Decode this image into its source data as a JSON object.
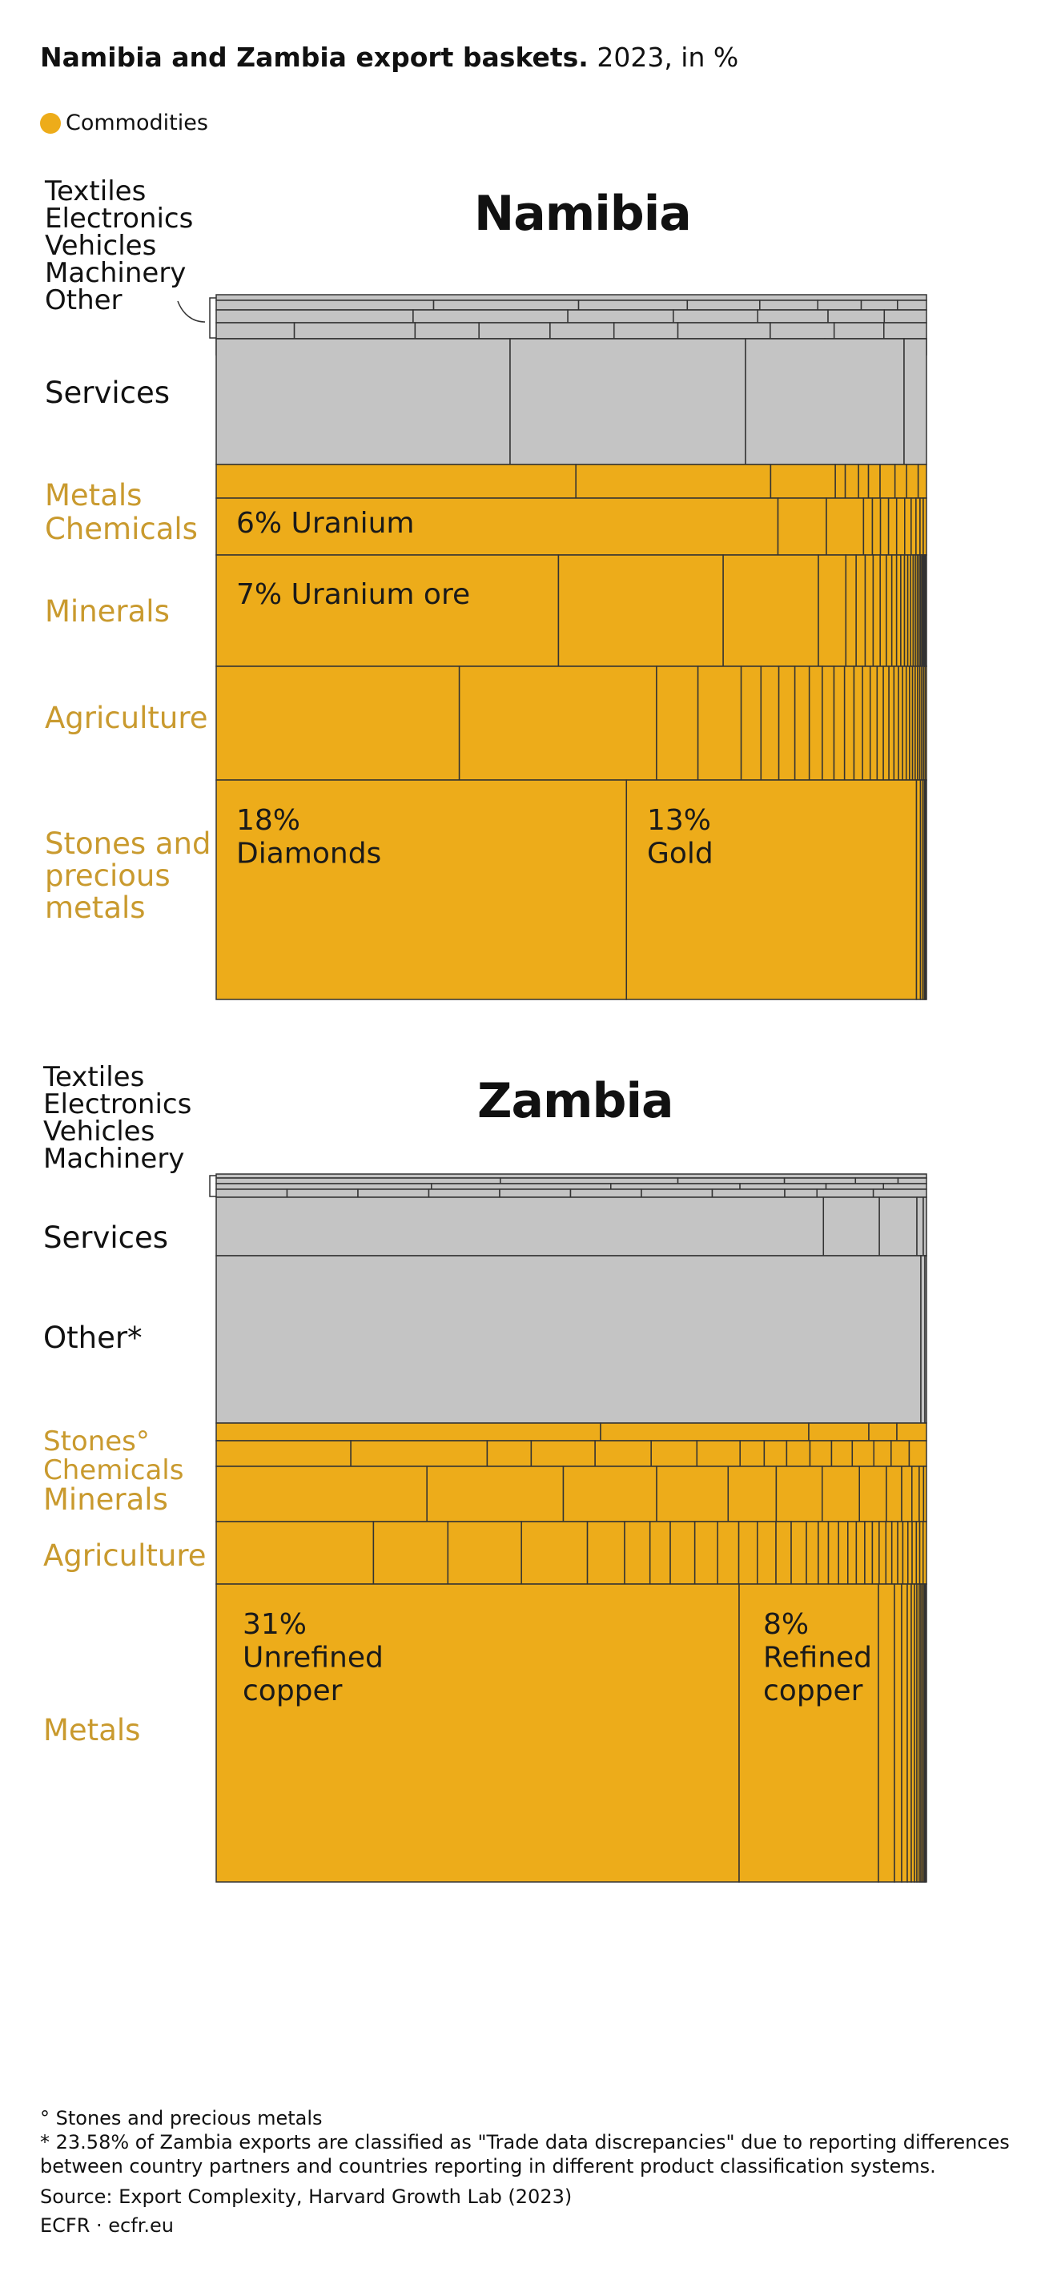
{
  "header": {
    "title_bold": "Namibia and Zambia export baskets.",
    "title_rest": " 2023, in %"
  },
  "legend": {
    "label": "Commodities",
    "color": "#EDAC1A"
  },
  "colors": {
    "commodity": "#EDAC1A",
    "non_commodity": "#C4C4C4",
    "commodity_label": "#C99A2E",
    "border": "#333333"
  },
  "chart_data": [
    {
      "type": "treemap",
      "title": "Namibia",
      "category_labels": [
        {
          "label": "Textiles\nElectronics\nVehicles\nMachinery\nOther",
          "commodity": false
        },
        {
          "label": "Services",
          "commodity": false
        },
        {
          "label": "Metals\nChemicals",
          "commodity": true
        },
        {
          "label": "Minerals",
          "commodity": true
        },
        {
          "label": "Agriculture",
          "commodity": true
        },
        {
          "label": "Stones and\nprecious\nmetals",
          "commodity": true
        }
      ],
      "annotations": [
        {
          "text": "6% Uranium",
          "value": 6
        },
        {
          "text": "7% Uranium ore",
          "value": 7
        },
        {
          "text": "18%\nDiamonds",
          "value": 18
        },
        {
          "text": "13%\nGold",
          "value": 13
        }
      ]
    },
    {
      "type": "treemap",
      "title": "Zambia",
      "category_labels": [
        {
          "label": "Textiles\nElectronics\nVehicles\nMachinery",
          "commodity": false
        },
        {
          "label": "Services",
          "commodity": false
        },
        {
          "label": "Other*",
          "commodity": false
        },
        {
          "label": "Stones°\nChemicals",
          "commodity": true
        },
        {
          "label": "Minerals",
          "commodity": true
        },
        {
          "label": "Agriculture",
          "commodity": true
        },
        {
          "label": "Metals",
          "commodity": true
        }
      ],
      "annotations": [
        {
          "text": "31%\nUnrefined\ncopper",
          "value": 31
        },
        {
          "text": "8%\nRefined\ncopper",
          "value": 8
        }
      ]
    }
  ],
  "footnotes": {
    "note1": "° Stones and precious metals",
    "note2": "* 23.58% of Zambia exports are classified as \"Trade data discrepancies\" due to reporting differences between country partners and countries reporting in different product classification systems.",
    "source": "Source: Export Complexity, Harvard Growth Lab (2023)",
    "credit": "ECFR · ecfr.eu"
  }
}
